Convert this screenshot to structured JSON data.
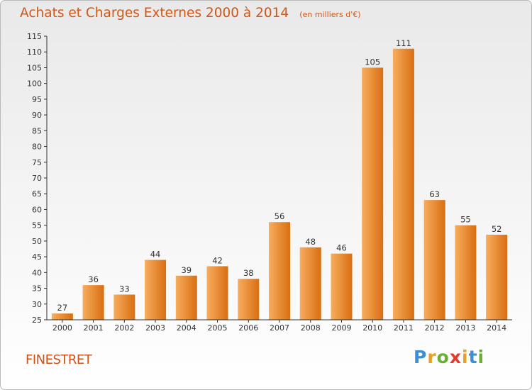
{
  "header": {
    "title": "Achats et Charges Externes 2000 à 2014",
    "subtitle": "(en milliers d'€)"
  },
  "footer": {
    "commune": "FINESTRET",
    "logo_letters": [
      {
        "char": "P",
        "color": "#3a8fd6"
      },
      {
        "char": "r",
        "color": "#e8a020"
      },
      {
        "char": "o",
        "color": "#6ab02f"
      },
      {
        "char": "x",
        "color": "#e23b2a"
      },
      {
        "char": "i",
        "color": "#e8a020"
      },
      {
        "char": "t",
        "color": "#3a8fd6"
      },
      {
        "char": "i",
        "color": "#6ab02f"
      }
    ]
  },
  "chart_data": {
    "type": "bar",
    "categories": [
      "2000",
      "2001",
      "2002",
      "2003",
      "2004",
      "2005",
      "2006",
      "2007",
      "2008",
      "2009",
      "2010",
      "2011",
      "2012",
      "2013",
      "2014"
    ],
    "values": [
      27,
      36,
      33,
      44,
      39,
      42,
      38,
      56,
      48,
      46,
      105,
      111,
      63,
      55,
      52
    ],
    "ylim": [
      25,
      115
    ],
    "yticks": [
      25,
      30,
      35,
      40,
      45,
      50,
      55,
      60,
      65,
      70,
      75,
      80,
      85,
      90,
      95,
      100,
      105,
      110,
      115
    ],
    "grid": false,
    "legend": "none",
    "colors": {
      "bar_light": "#f7ad5e",
      "bar_dark": "#d96e12",
      "axis": "#333333"
    }
  }
}
